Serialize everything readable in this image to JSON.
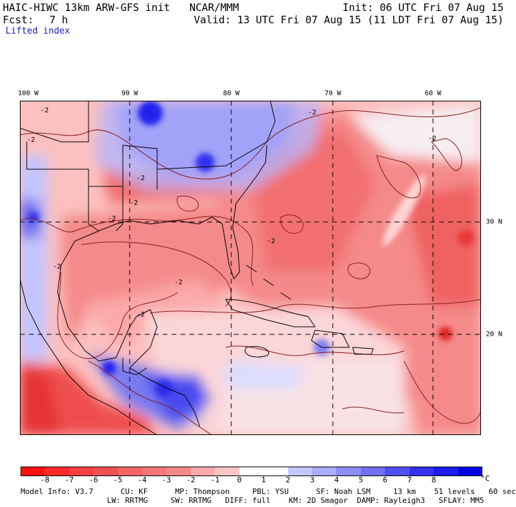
{
  "header": {
    "model": "HAIC-HIWC 13km ARW-GFS init",
    "org": "NCAR/MMM",
    "init": "Init: 06 UTC Fri 07 Aug 15",
    "fcst_label": "Fcst:",
    "fcst_value": "7 h",
    "valid": "Valid: 13 UTC Fri 07 Aug 15 (11 LDT Fri 07 Aug 15)",
    "field": "Lifted index"
  },
  "map": {
    "lon_labels": [
      "100 W",
      "90 W",
      "80 W",
      "70 W",
      "60 W"
    ],
    "lat_labels": [
      "30 N",
      "20 N"
    ],
    "contour_label": "-2",
    "colors": {
      "deep_blue": "#1c1cf0",
      "blue": "#6e6ef5",
      "light_blue": "#c8c8ff",
      "near_zero": "#f6f2f4",
      "pink": "#fcbcbc",
      "salmon": "#f58a8a",
      "red": "#ef5a5a",
      "deep_red": "#e02020"
    }
  },
  "colorbar": {
    "labels": [
      "-8",
      "-7",
      "-6",
      "-5",
      "-4",
      "-3",
      "-2",
      "-1",
      "0",
      "1",
      "2",
      "3",
      "4",
      "5",
      "6",
      "7",
      "8"
    ],
    "unit": "°C",
    "colors": [
      "#ff1010",
      "#ff2a2a",
      "#f94040",
      "#f05050",
      "#f46464",
      "#f47878",
      "#f58a8a",
      "#fba9a9",
      "#fcc6c6",
      "#ffffff",
      "#ffffff",
      "#c6c6ff",
      "#aaaaff",
      "#8e8ef8",
      "#7070f0",
      "#5050f0",
      "#3232f0",
      "#1c1cf0",
      "#0000e6"
    ]
  },
  "footer": {
    "line1": "Model Info: V3.7      CU: KF      MP: Thompson     PBL: YSU      SF: Noah LSM     13 km    51 levels   60 sec",
    "line2": "                   LW: RRTMG     SW: RRTMG   DIFF: full    KM: 2D Smagor  DAMP: Rayleigh3   SFLAY: MM5"
  }
}
